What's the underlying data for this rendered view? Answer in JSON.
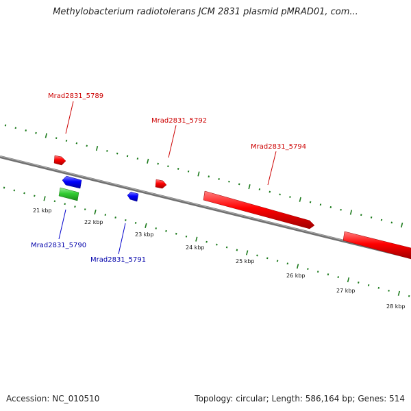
{
  "header": {
    "title": "Methylobacterium radiotolerans JCM 2831 plasmid pMRAD01, com..."
  },
  "footer": {
    "accession": "Accession: NC_010510",
    "summary": "Topology: circular; Length: 586,164 bp; Genes: 514"
  },
  "colors": {
    "forward_gene": "#ff0000",
    "reverse_gene": "#0000ff",
    "rna_gene": "#33cc33",
    "backbone": "#808080",
    "ticks": "#1b7a1b"
  },
  "scale": {
    "unit": "kbp",
    "labels": [
      "21 kbp",
      "22 kbp",
      "23 kbp",
      "24 kbp",
      "25 kbp",
      "26 kbp",
      "27 kbp",
      "28 kbp"
    ]
  },
  "genes": [
    {
      "label": "Mrad2831_5789",
      "strand": "forward",
      "color": "#cc0000"
    },
    {
      "label": "Mrad2831_5792",
      "strand": "forward",
      "color": "#cc0000"
    },
    {
      "label": "Mrad2831_5794",
      "strand": "forward",
      "color": "#cc0000"
    },
    {
      "label": "Mrad2831_5790",
      "strand": "reverse",
      "color": "#0000aa"
    },
    {
      "label": "Mrad2831_5791",
      "strand": "reverse",
      "color": "#0000aa"
    }
  ]
}
